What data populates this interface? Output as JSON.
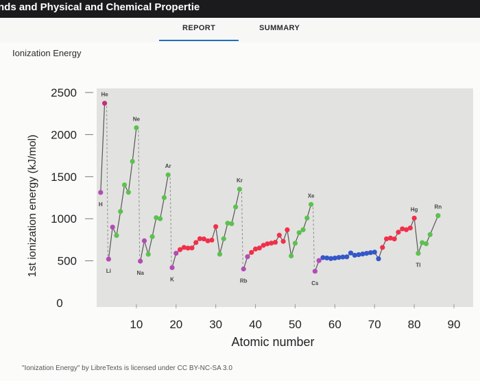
{
  "window": {
    "title": "nds and Physical and Chemical Propertie"
  },
  "tabs": [
    {
      "label": "REPORT"
    },
    {
      "label": "SUMMARY"
    }
  ],
  "section_title": "Ionization Energy",
  "credit": "\"Ionization Energy\" by LibreTexts is licensed under CC BY-NC-SA 3.0",
  "colors": {
    "s_block": "#b24cb4",
    "p_block": "#5cc14f",
    "d_block": "#f0304a",
    "f_block": "#3457c9",
    "he": "#c0327a",
    "connector": "#555555",
    "plot_background": "#e2e2e0"
  },
  "chart_data": {
    "type": "line",
    "xlabel": "Atomic number",
    "ylabel": "1st ionization energy (kJ/mol)",
    "xlim": [
      0,
      90
    ],
    "ylim": [
      0,
      2500
    ],
    "x_ticks": [
      10,
      20,
      30,
      40,
      50,
      60,
      70,
      80,
      90
    ],
    "y_ticks": [
      500,
      1000,
      1500,
      2000,
      2500
    ],
    "y_zero_label": "0",
    "grid": false,
    "points": [
      {
        "x": 1,
        "y": 1312,
        "g": "s"
      },
      {
        "x": 2,
        "y": 2372,
        "g": "he"
      },
      {
        "x": 3,
        "y": 520,
        "g": "s"
      },
      {
        "x": 4,
        "y": 900,
        "g": "s"
      },
      {
        "x": 5,
        "y": 801,
        "g": "p"
      },
      {
        "x": 6,
        "y": 1086,
        "g": "p"
      },
      {
        "x": 7,
        "y": 1402,
        "g": "p"
      },
      {
        "x": 8,
        "y": 1314,
        "g": "p"
      },
      {
        "x": 9,
        "y": 1681,
        "g": "p"
      },
      {
        "x": 10,
        "y": 2081,
        "g": "p"
      },
      {
        "x": 11,
        "y": 496,
        "g": "s"
      },
      {
        "x": 12,
        "y": 738,
        "g": "s"
      },
      {
        "x": 13,
        "y": 578,
        "g": "p"
      },
      {
        "x": 14,
        "y": 787,
        "g": "p"
      },
      {
        "x": 15,
        "y": 1012,
        "g": "p"
      },
      {
        "x": 16,
        "y": 1000,
        "g": "p"
      },
      {
        "x": 17,
        "y": 1251,
        "g": "p"
      },
      {
        "x": 18,
        "y": 1521,
        "g": "p"
      },
      {
        "x": 19,
        "y": 419,
        "g": "s"
      },
      {
        "x": 20,
        "y": 590,
        "g": "s"
      },
      {
        "x": 21,
        "y": 633,
        "g": "d"
      },
      {
        "x": 22,
        "y": 659,
        "g": "d"
      },
      {
        "x": 23,
        "y": 651,
        "g": "d"
      },
      {
        "x": 24,
        "y": 653,
        "g": "d"
      },
      {
        "x": 25,
        "y": 717,
        "g": "d"
      },
      {
        "x": 26,
        "y": 763,
        "g": "d"
      },
      {
        "x": 27,
        "y": 760,
        "g": "d"
      },
      {
        "x": 28,
        "y": 737,
        "g": "d"
      },
      {
        "x": 29,
        "y": 746,
        "g": "d"
      },
      {
        "x": 30,
        "y": 906,
        "g": "d"
      },
      {
        "x": 31,
        "y": 579,
        "g": "p"
      },
      {
        "x": 32,
        "y": 762,
        "g": "p"
      },
      {
        "x": 33,
        "y": 947,
        "g": "p"
      },
      {
        "x": 34,
        "y": 941,
        "g": "p"
      },
      {
        "x": 35,
        "y": 1140,
        "g": "p"
      },
      {
        "x": 36,
        "y": 1351,
        "g": "p"
      },
      {
        "x": 37,
        "y": 403,
        "g": "s"
      },
      {
        "x": 38,
        "y": 549,
        "g": "s"
      },
      {
        "x": 39,
        "y": 600,
        "g": "d"
      },
      {
        "x": 40,
        "y": 640,
        "g": "d"
      },
      {
        "x": 41,
        "y": 652,
        "g": "d"
      },
      {
        "x": 42,
        "y": 684,
        "g": "d"
      },
      {
        "x": 43,
        "y": 702,
        "g": "d"
      },
      {
        "x": 44,
        "y": 710,
        "g": "d"
      },
      {
        "x": 45,
        "y": 720,
        "g": "d"
      },
      {
        "x": 46,
        "y": 804,
        "g": "d"
      },
      {
        "x": 47,
        "y": 731,
        "g": "d"
      },
      {
        "x": 48,
        "y": 868,
        "g": "d"
      },
      {
        "x": 49,
        "y": 558,
        "g": "p"
      },
      {
        "x": 50,
        "y": 709,
        "g": "p"
      },
      {
        "x": 51,
        "y": 834,
        "g": "p"
      },
      {
        "x": 52,
        "y": 869,
        "g": "p"
      },
      {
        "x": 53,
        "y": 1008,
        "g": "p"
      },
      {
        "x": 54,
        "y": 1170,
        "g": "p"
      },
      {
        "x": 55,
        "y": 376,
        "g": "s"
      },
      {
        "x": 56,
        "y": 503,
        "g": "s"
      },
      {
        "x": 57,
        "y": 538,
        "g": "f"
      },
      {
        "x": 58,
        "y": 534,
        "g": "f"
      },
      {
        "x": 59,
        "y": 527,
        "g": "f"
      },
      {
        "x": 60,
        "y": 533,
        "g": "f"
      },
      {
        "x": 61,
        "y": 540,
        "g": "f"
      },
      {
        "x": 62,
        "y": 545,
        "g": "f"
      },
      {
        "x": 63,
        "y": 547,
        "g": "f"
      },
      {
        "x": 64,
        "y": 593,
        "g": "f"
      },
      {
        "x": 65,
        "y": 566,
        "g": "f"
      },
      {
        "x": 66,
        "y": 573,
        "g": "f"
      },
      {
        "x": 67,
        "y": 581,
        "g": "f"
      },
      {
        "x": 68,
        "y": 589,
        "g": "f"
      },
      {
        "x": 69,
        "y": 597,
        "g": "f"
      },
      {
        "x": 70,
        "y": 603,
        "g": "f"
      },
      {
        "x": 71,
        "y": 524,
        "g": "f"
      },
      {
        "x": 72,
        "y": 659,
        "g": "d"
      },
      {
        "x": 73,
        "y": 761,
        "g": "d"
      },
      {
        "x": 74,
        "y": 770,
        "g": "d"
      },
      {
        "x": 75,
        "y": 760,
        "g": "d"
      },
      {
        "x": 76,
        "y": 840,
        "g": "d"
      },
      {
        "x": 77,
        "y": 880,
        "g": "d"
      },
      {
        "x": 78,
        "y": 870,
        "g": "d"
      },
      {
        "x": 79,
        "y": 890,
        "g": "d"
      },
      {
        "x": 80,
        "y": 1007,
        "g": "d"
      },
      {
        "x": 81,
        "y": 589,
        "g": "p"
      },
      {
        "x": 82,
        "y": 716,
        "g": "p"
      },
      {
        "x": 83,
        "y": 703,
        "g": "p"
      },
      {
        "x": 84,
        "y": 812,
        "g": "p"
      },
      {
        "x": 86,
        "y": 1037,
        "g": "p"
      }
    ],
    "element_labels": [
      {
        "text": "H",
        "x": 1,
        "y": 1312,
        "pos": "below"
      },
      {
        "text": "He",
        "x": 2,
        "y": 2372,
        "pos": "above"
      },
      {
        "text": "Li",
        "x": 3,
        "y": 520,
        "pos": "below"
      },
      {
        "text": "Ne",
        "x": 10,
        "y": 2081,
        "pos": "above"
      },
      {
        "text": "Na",
        "x": 11,
        "y": 496,
        "pos": "below"
      },
      {
        "text": "Ar",
        "x": 18,
        "y": 1521,
        "pos": "above"
      },
      {
        "text": "K",
        "x": 19,
        "y": 419,
        "pos": "below"
      },
      {
        "text": "Kr",
        "x": 36,
        "y": 1351,
        "pos": "above"
      },
      {
        "text": "Rb",
        "x": 37,
        "y": 403,
        "pos": "below"
      },
      {
        "text": "Xe",
        "x": 54,
        "y": 1170,
        "pos": "above"
      },
      {
        "text": "Cs",
        "x": 55,
        "y": 376,
        "pos": "below"
      },
      {
        "text": "Hg",
        "x": 80,
        "y": 1007,
        "pos": "above"
      },
      {
        "text": "Tl",
        "x": 81,
        "y": 589,
        "pos": "below"
      },
      {
        "text": "Rn",
        "x": 86,
        "y": 1037,
        "pos": "above"
      }
    ]
  }
}
